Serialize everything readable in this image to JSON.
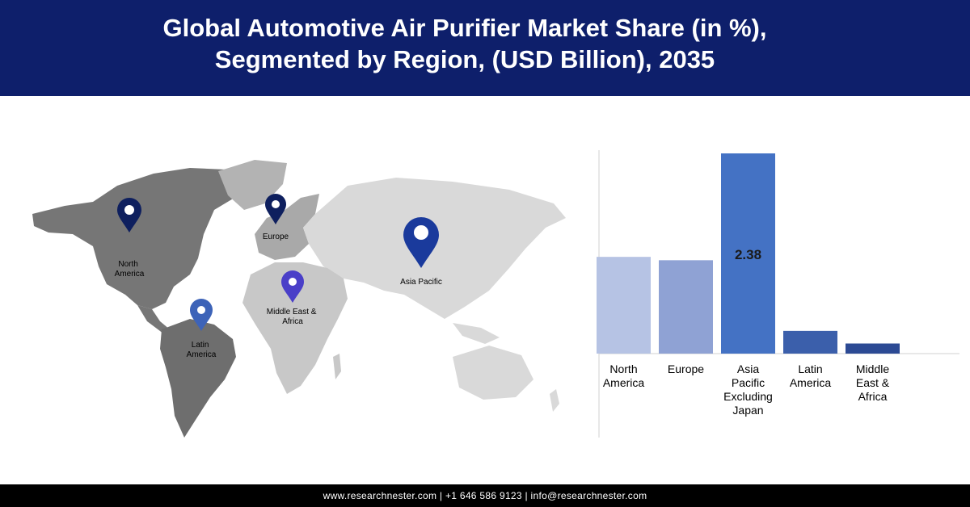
{
  "header": {
    "title_line1": "Global Automotive Air Purifier Market Share (in %),",
    "title_line2": "Segmented by Region, (USD Billion), 2035"
  },
  "map": {
    "pins": [
      {
        "id": "north-america",
        "label_lines": [
          "North",
          "America"
        ],
        "color": "#0e1f5e"
      },
      {
        "id": "europe",
        "label_lines": [
          "Europe"
        ],
        "color": "#0e1f5e"
      },
      {
        "id": "asia-pacific",
        "label_lines": [
          "Asia Pacific"
        ],
        "color": "#1a3a9c"
      },
      {
        "id": "middle-east-africa",
        "label_lines": [
          "Middle East &",
          "Africa"
        ],
        "color": "#4a3fc8"
      },
      {
        "id": "latin-america",
        "label_lines": [
          "Latin",
          "America"
        ],
        "color": "#3d63b8"
      }
    ]
  },
  "chart_data": {
    "type": "bar",
    "categories": [
      [
        "North",
        "America"
      ],
      [
        "Europe"
      ],
      [
        "Asia",
        "Pacific",
        "Excluding",
        "Japan"
      ],
      [
        "Latin",
        "America"
      ],
      [
        "Middle",
        "East &",
        "Africa"
      ]
    ],
    "values": [
      1.15,
      1.11,
      2.38,
      0.27,
      0.12
    ],
    "colors": [
      "#b6c3e4",
      "#8fa2d4",
      "#4472c4",
      "#3b5fab",
      "#2c4a94"
    ],
    "data_labels": [
      null,
      null,
      "2.38",
      null,
      null
    ],
    "ylim": [
      0,
      2.38
    ],
    "grid": false
  },
  "footer": {
    "text": "www.researchnester.com | +1 646 586 9123 | info@researchnester.com"
  }
}
